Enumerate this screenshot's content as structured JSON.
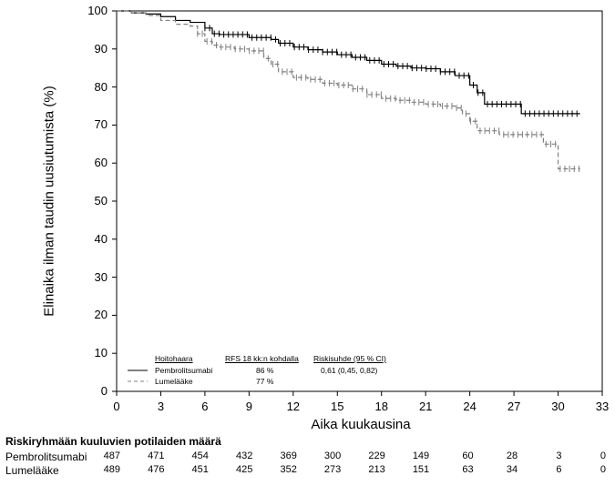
{
  "chart_data": {
    "type": "line",
    "subtype": "kaplan-meier",
    "ylabel": "Elinaika ilman taudin uusiutumista (%)",
    "xlabel": "Aika kuukausina",
    "ylim": [
      0,
      100
    ],
    "xlim": [
      0,
      33
    ],
    "y_ticks": [
      0,
      10,
      20,
      30,
      40,
      50,
      60,
      70,
      80,
      90,
      100
    ],
    "x_ticks": [
      0,
      3,
      6,
      9,
      12,
      15,
      18,
      21,
      24,
      27,
      30,
      33
    ],
    "series": [
      {
        "name": "Pembrolitsumabi",
        "style": "solid",
        "color": "#000000",
        "x": [
          0,
          1,
          2,
          3,
          4,
          5,
          6,
          6.5,
          7,
          9,
          10.5,
          11,
          12,
          13,
          14,
          15,
          16,
          17,
          18,
          19,
          20,
          21,
          22,
          23,
          24,
          24.5,
          25,
          26,
          27,
          27.5,
          28,
          29,
          30,
          31.5
        ],
        "y": [
          100,
          99.5,
          99.2,
          98.5,
          97.5,
          97,
          95.5,
          94,
          93.8,
          93,
          92.5,
          91.5,
          90.5,
          89.8,
          89.2,
          88.5,
          87.8,
          87,
          86,
          85.5,
          85,
          84.8,
          84,
          83,
          80.5,
          78.5,
          75.5,
          75.5,
          75.5,
          73,
          73,
          73,
          73,
          73
        ]
      },
      {
        "name": "Lumelääke",
        "style": "dashed",
        "color": "#808080",
        "x": [
          0,
          1,
          2,
          3,
          4,
          5,
          5.5,
          6,
          6.5,
          7,
          8,
          9,
          10,
          10.5,
          11,
          12,
          13,
          14,
          15,
          16,
          17,
          18,
          19,
          20,
          21,
          22,
          23,
          23.5,
          24,
          24.5,
          26,
          28,
          29,
          30,
          31.5
        ],
        "y": [
          100,
          99.5,
          98.8,
          97.5,
          96.5,
          96,
          94,
          92,
          91,
          90.5,
          90,
          89.5,
          87.5,
          86,
          84,
          82.5,
          82,
          81,
          80.5,
          79.5,
          78,
          77,
          76.5,
          76,
          75.5,
          75,
          74.5,
          73,
          71,
          68.5,
          67.5,
          67.5,
          65,
          58.5,
          58.5
        ]
      }
    ],
    "legend": {
      "header": [
        "Hoitohaara",
        "RFS 18  kk:n kohdalla",
        "Riskisuhde (95  % CI)"
      ],
      "rows": [
        {
          "name": "Pembrolitsumabi",
          "rfs": "86  %",
          "hr": "0,61 (0,45, 0,82)"
        },
        {
          "name": "Lumelääke",
          "rfs": "77  %",
          "hr": ""
        }
      ]
    },
    "risk_table": {
      "title": "Riskiryhmään kuuluvien potilaiden määrä",
      "times": [
        0,
        3,
        6,
        9,
        12,
        15,
        18,
        21,
        24,
        27,
        30,
        33
      ],
      "rows": [
        {
          "name": "Pembrolitsumabi",
          "values": [
            487,
            471,
            454,
            432,
            369,
            300,
            229,
            149,
            60,
            28,
            3,
            0
          ]
        },
        {
          "name": "Lumelääke",
          "values": [
            489,
            476,
            451,
            425,
            352,
            273,
            213,
            151,
            63,
            34,
            6,
            0
          ]
        }
      ]
    }
  }
}
